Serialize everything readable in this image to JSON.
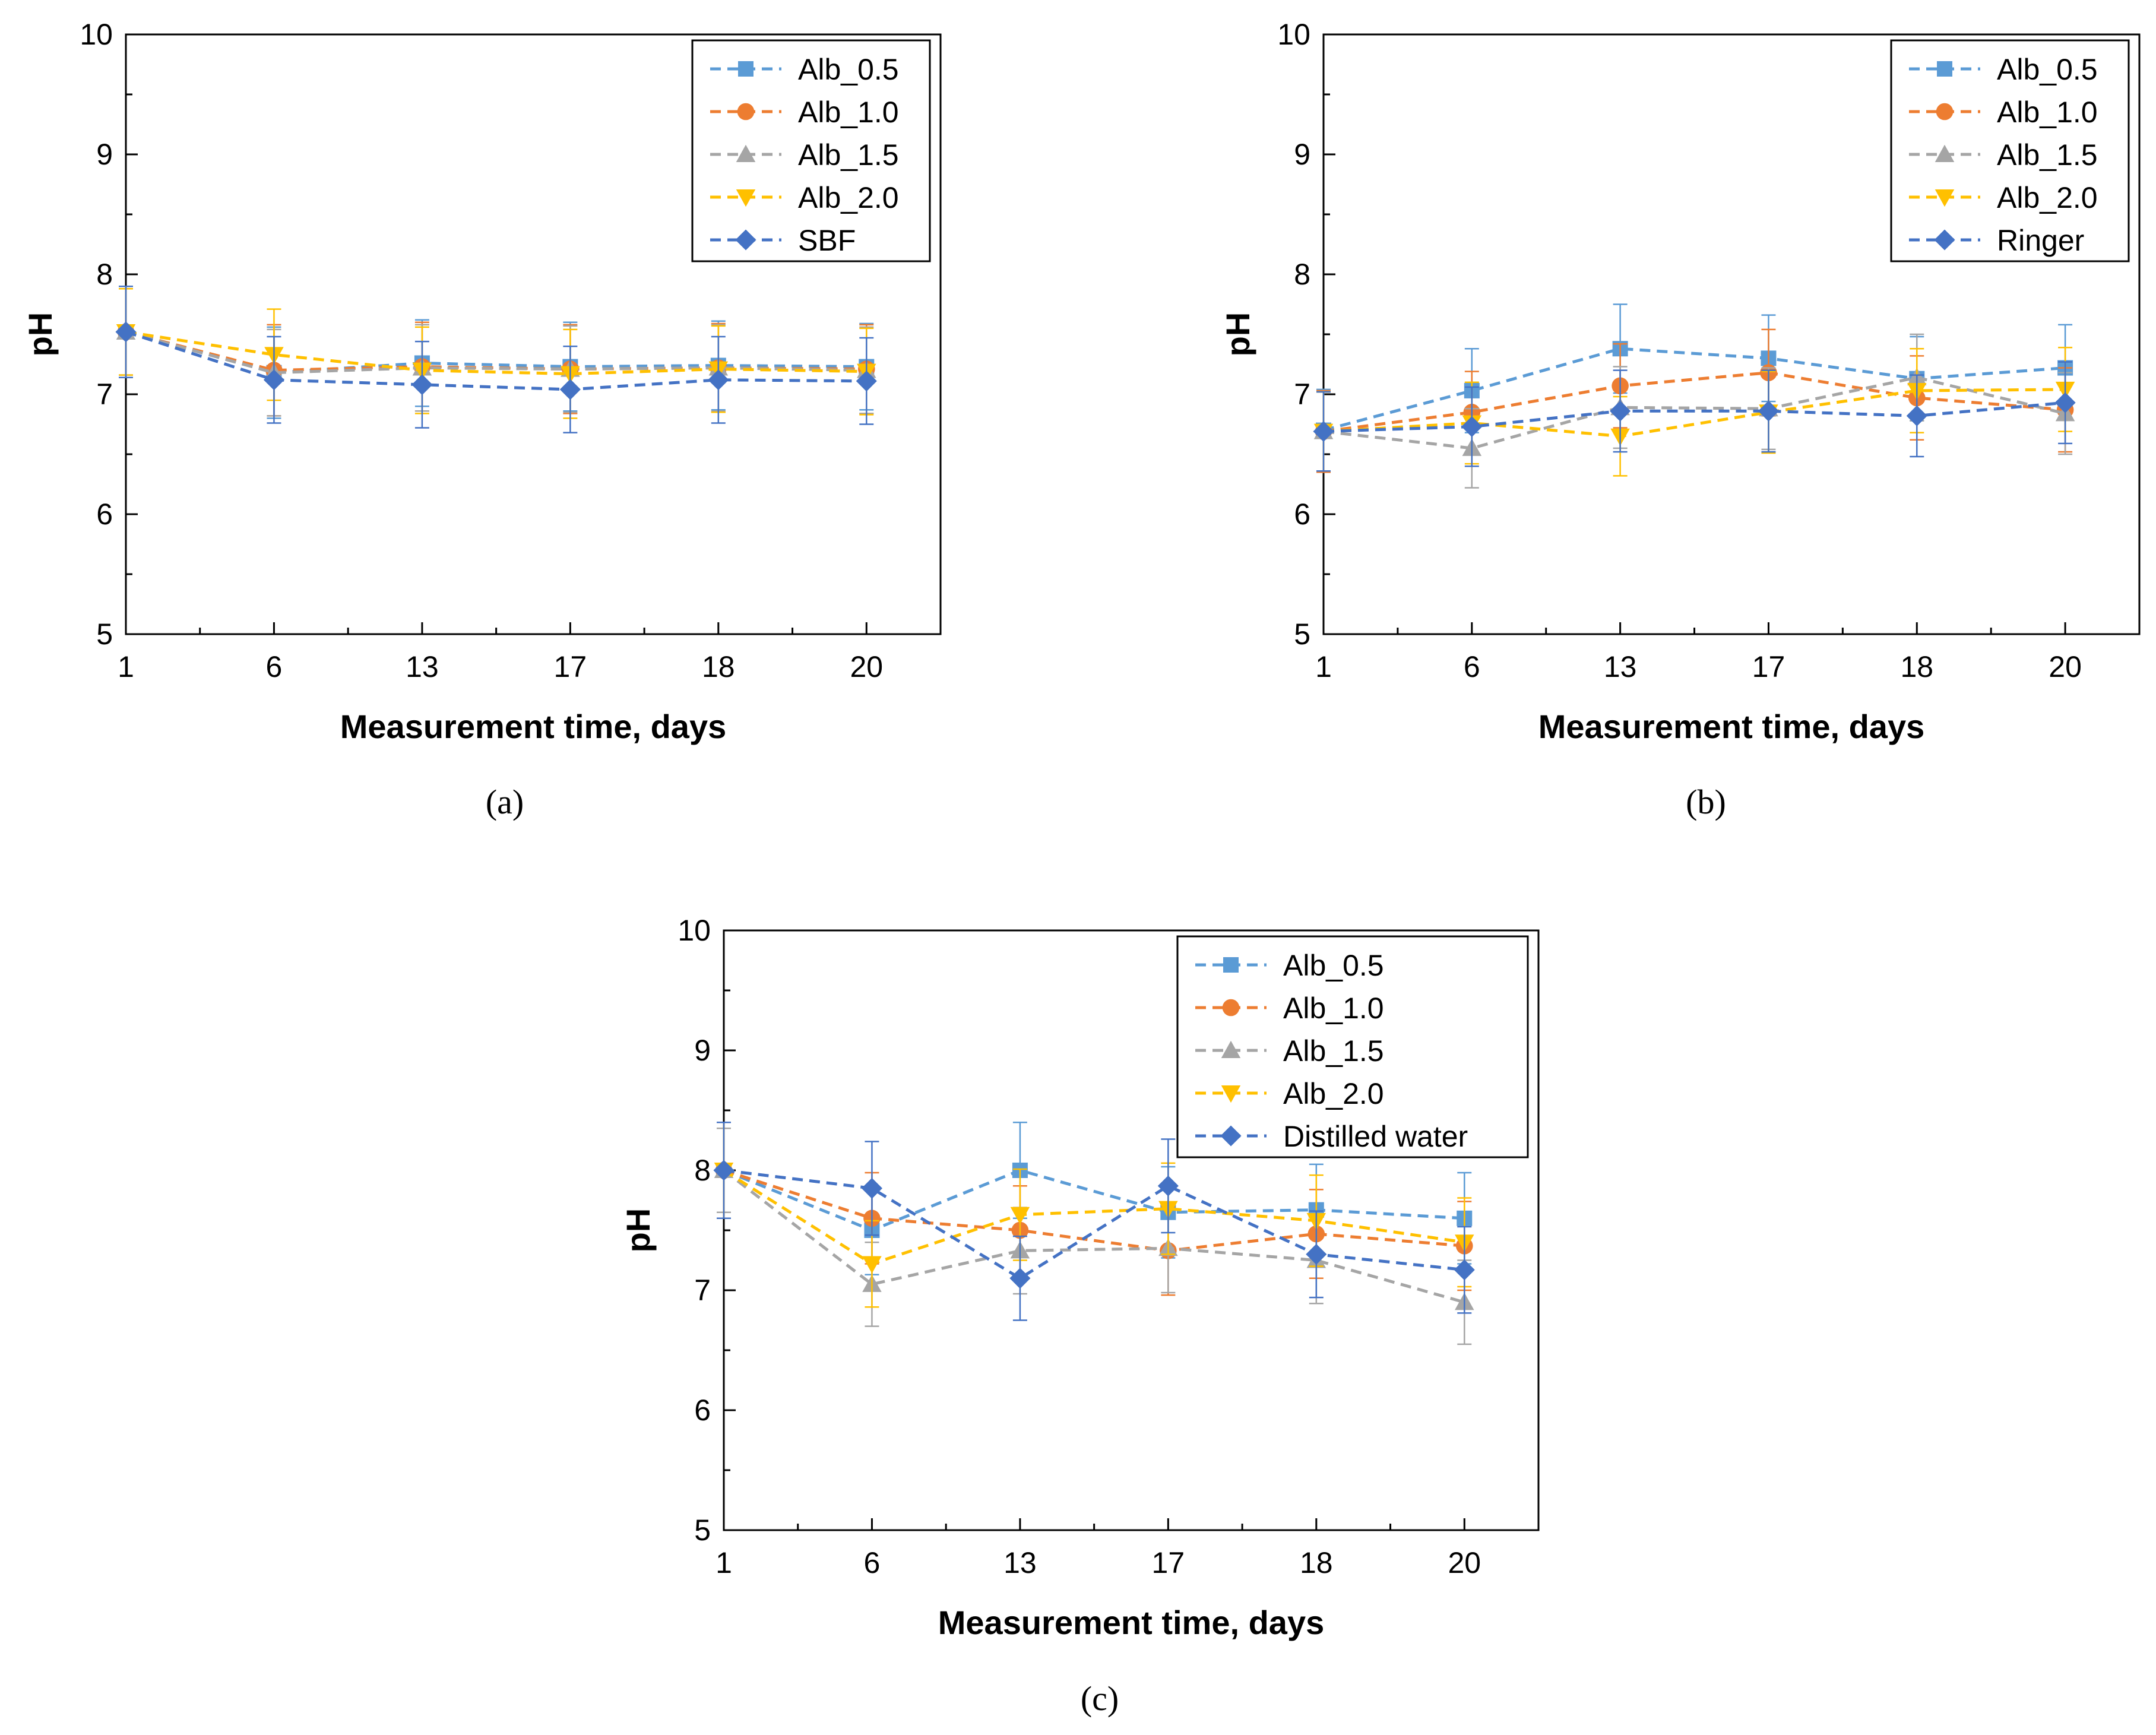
{
  "chart_data": [
    {
      "type": "line",
      "panel": "a",
      "caption": "(a)",
      "xlabel": "Measurement time, days",
      "ylabel": "pH",
      "categories": [
        "1",
        "6",
        "13",
        "17",
        "18",
        "20"
      ],
      "ylim": [
        5,
        10
      ],
      "yticks": [
        "5",
        "6",
        "7",
        "8",
        "9",
        "10"
      ],
      "legend_position": "top-right",
      "series": [
        {
          "name": "Alb_0.5",
          "color": "#5b9bd5",
          "marker": "square",
          "values": [
            7.52,
            7.18,
            7.26,
            7.23,
            7.24,
            7.23
          ],
          "errors": [
            0.38,
            0.38,
            0.36,
            0.37,
            0.37,
            0.36
          ]
        },
        {
          "name": "Alb_1.0",
          "color": "#ed7d31",
          "marker": "circle",
          "values": [
            7.52,
            7.2,
            7.23,
            7.21,
            7.22,
            7.21
          ],
          "errors": [
            0.38,
            0.38,
            0.37,
            0.37,
            0.37,
            0.37
          ]
        },
        {
          "name": "Alb_1.5",
          "color": "#a5a5a5",
          "marker": "triangle-up",
          "values": [
            7.52,
            7.18,
            7.22,
            7.21,
            7.22,
            7.2
          ],
          "errors": [
            0.36,
            0.36,
            0.36,
            0.36,
            0.36,
            0.36
          ]
        },
        {
          "name": "Alb_2.0",
          "color": "#ffc000",
          "marker": "triangle-down",
          "values": [
            7.52,
            7.33,
            7.2,
            7.17,
            7.21,
            7.19
          ],
          "errors": [
            0.36,
            0.38,
            0.36,
            0.37,
            0.36,
            0.36
          ]
        },
        {
          "name": "SBF",
          "color": "#4472c4",
          "marker": "diamond",
          "values": [
            7.52,
            7.12,
            7.08,
            7.04,
            7.12,
            7.11
          ],
          "errors": [
            0.38,
            0.36,
            0.36,
            0.36,
            0.36,
            0.36
          ]
        }
      ]
    },
    {
      "type": "line",
      "panel": "b",
      "caption": "(b)",
      "xlabel": "Measurement time, days",
      "ylabel": "pH",
      "categories": [
        "1",
        "6",
        "13",
        "17",
        "18",
        "20"
      ],
      "ylim": [
        5,
        10
      ],
      "yticks": [
        "5",
        "6",
        "7",
        "8",
        "9",
        "10"
      ],
      "legend_position": "top-right",
      "series": [
        {
          "name": "Alb_0.5",
          "color": "#5b9bd5",
          "marker": "square",
          "values": [
            6.7,
            7.03,
            7.38,
            7.3,
            7.13,
            7.22
          ],
          "errors": [
            0.34,
            0.35,
            0.37,
            0.36,
            0.35,
            0.36
          ]
        },
        {
          "name": "Alb_1.0",
          "color": "#ed7d31",
          "marker": "circle",
          "values": [
            6.69,
            6.85,
            7.07,
            7.18,
            6.97,
            6.87
          ],
          "errors": [
            0.34,
            0.34,
            0.35,
            0.36,
            0.35,
            0.35
          ]
        },
        {
          "name": "Alb_1.5",
          "color": "#a5a5a5",
          "marker": "triangle-up",
          "values": [
            6.69,
            6.55,
            6.89,
            6.88,
            7.14,
            6.84
          ],
          "errors": [
            0.33,
            0.33,
            0.34,
            0.34,
            0.36,
            0.34
          ]
        },
        {
          "name": "Alb_2.0",
          "color": "#ffc000",
          "marker": "triangle-down",
          "values": [
            6.69,
            6.76,
            6.65,
            6.85,
            7.03,
            7.04
          ],
          "errors": [
            0.33,
            0.34,
            0.33,
            0.34,
            0.35,
            0.35
          ]
        },
        {
          "name": "Ringer",
          "color": "#4472c4",
          "marker": "diamond",
          "values": [
            6.69,
            6.73,
            6.86,
            6.86,
            6.82,
            6.93
          ],
          "errors": [
            0.33,
            0.33,
            0.34,
            0.34,
            0.34,
            0.34
          ]
        }
      ]
    },
    {
      "type": "line",
      "panel": "c",
      "caption": "(c)",
      "xlabel": "Measurement time, days",
      "ylabel": "pH",
      "categories": [
        "1",
        "6",
        "13",
        "17",
        "18",
        "20"
      ],
      "ylim": [
        5,
        10
      ],
      "yticks": [
        "5",
        "6",
        "7",
        "8",
        "9",
        "10"
      ],
      "legend_position": "top-right",
      "series": [
        {
          "name": "Alb_0.5",
          "color": "#5b9bd5",
          "marker": "square",
          "values": [
            8.0,
            7.5,
            8.0,
            7.65,
            7.67,
            7.6
          ],
          "errors": [
            0.4,
            0.37,
            0.4,
            0.38,
            0.38,
            0.38
          ]
        },
        {
          "name": "Alb_1.0",
          "color": "#ed7d31",
          "marker": "circle",
          "values": [
            8.0,
            7.6,
            7.5,
            7.33,
            7.47,
            7.37
          ],
          "errors": [
            0.4,
            0.38,
            0.37,
            0.37,
            0.37,
            0.37
          ]
        },
        {
          "name": "Alb_1.5",
          "color": "#a5a5a5",
          "marker": "triangle-up",
          "values": [
            8.0,
            7.05,
            7.33,
            7.35,
            7.25,
            6.9
          ],
          "errors": [
            0.35,
            0.35,
            0.36,
            0.37,
            0.36,
            0.35
          ]
        },
        {
          "name": "Alb_2.0",
          "color": "#ffc000",
          "marker": "triangle-down",
          "values": [
            8.0,
            7.22,
            7.63,
            7.68,
            7.58,
            7.4
          ],
          "errors": [
            0.4,
            0.36,
            0.38,
            0.38,
            0.38,
            0.37
          ]
        },
        {
          "name": "Distilled water",
          "color": "#4472c4",
          "marker": "diamond",
          "values": [
            8.0,
            7.85,
            7.1,
            7.87,
            7.3,
            7.17
          ],
          "errors": [
            0.4,
            0.39,
            0.35,
            0.39,
            0.36,
            0.36
          ]
        }
      ]
    }
  ]
}
